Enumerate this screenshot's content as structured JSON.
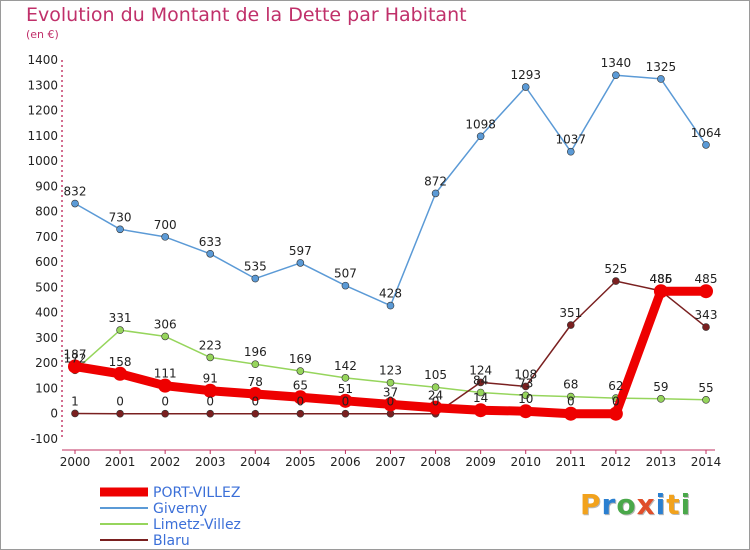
{
  "title": "Evolution du Montant de la Dette par Habitant",
  "subtitle": "(en €)",
  "logo": {
    "text": "Proxiti",
    "letters": [
      "P",
      "r",
      "o",
      "x",
      "i",
      "t",
      "i"
    ],
    "colors": [
      "#f2a21c",
      "#2a7fd0",
      "#4aa84a",
      "#e04e2a",
      "#2a7fd0",
      "#f2a21c",
      "#4aa84a"
    ]
  },
  "chart_data": {
    "type": "line",
    "title": "Evolution du Montant de la Dette par Habitant",
    "subtitle": "(en €)",
    "x": [
      "2000",
      "2001",
      "2002",
      "2003",
      "2004",
      "2005",
      "2006",
      "2007",
      "2008",
      "2009",
      "2010",
      "2011",
      "2012",
      "2013",
      "2014"
    ],
    "ylim": [
      -100,
      1400
    ],
    "yticks": [
      "-100",
      "0",
      "100",
      "200",
      "300",
      "400",
      "500",
      "600",
      "700",
      "800",
      "900",
      "1000",
      "1100",
      "1200",
      "1300",
      "1400"
    ],
    "grid": false,
    "legend": "bottom-left",
    "series": [
      {
        "name": "PORT-VILLEZ",
        "color": "#ee0000",
        "width": 9,
        "values": [
          187,
          158,
          111,
          91,
          78,
          65,
          51,
          37,
          24,
          14,
          10,
          0,
          0,
          485,
          485
        ],
        "labels": [
          "187",
          "158",
          "111",
          "91",
          "78",
          "65",
          "51",
          "37",
          "24",
          "14",
          "10",
          "0",
          "0",
          "485",
          "485"
        ]
      },
      {
        "name": "Giverny",
        "color": "#5b9ad6",
        "width": 1.5,
        "values": [
          832,
          730,
          700,
          633,
          535,
          597,
          507,
          428,
          872,
          1098,
          1293,
          1037,
          1340,
          1325,
          1064
        ],
        "labels": [
          "832",
          "730",
          "700",
          "633",
          "535",
          "597",
          "507",
          "428",
          "872",
          "1098",
          "1293",
          "1037",
          "1340",
          "1325",
          "1064"
        ]
      },
      {
        "name": "Limetz-Villez",
        "color": "#96d55c",
        "width": 1.5,
        "values": [
          172,
          331,
          306,
          223,
          196,
          169,
          142,
          123,
          105,
          84,
          73,
          68,
          62,
          59,
          55
        ],
        "labels": [
          "172",
          "331",
          "306",
          "223",
          "196",
          "169",
          "142",
          "123",
          "105",
          "84",
          "73",
          "68",
          "62",
          "59",
          "55"
        ]
      },
      {
        "name": "Blaru",
        "color": "#7a2020",
        "width": 1.5,
        "values": [
          1,
          0,
          0,
          0,
          0,
          0,
          0,
          0,
          0,
          124,
          108,
          351,
          525,
          486,
          343
        ],
        "labels": [
          "1",
          "0",
          "0",
          "0",
          "0",
          "0",
          "0",
          "0",
          "0",
          "124",
          "108",
          "351",
          "525",
          "486",
          "343"
        ]
      }
    ]
  }
}
